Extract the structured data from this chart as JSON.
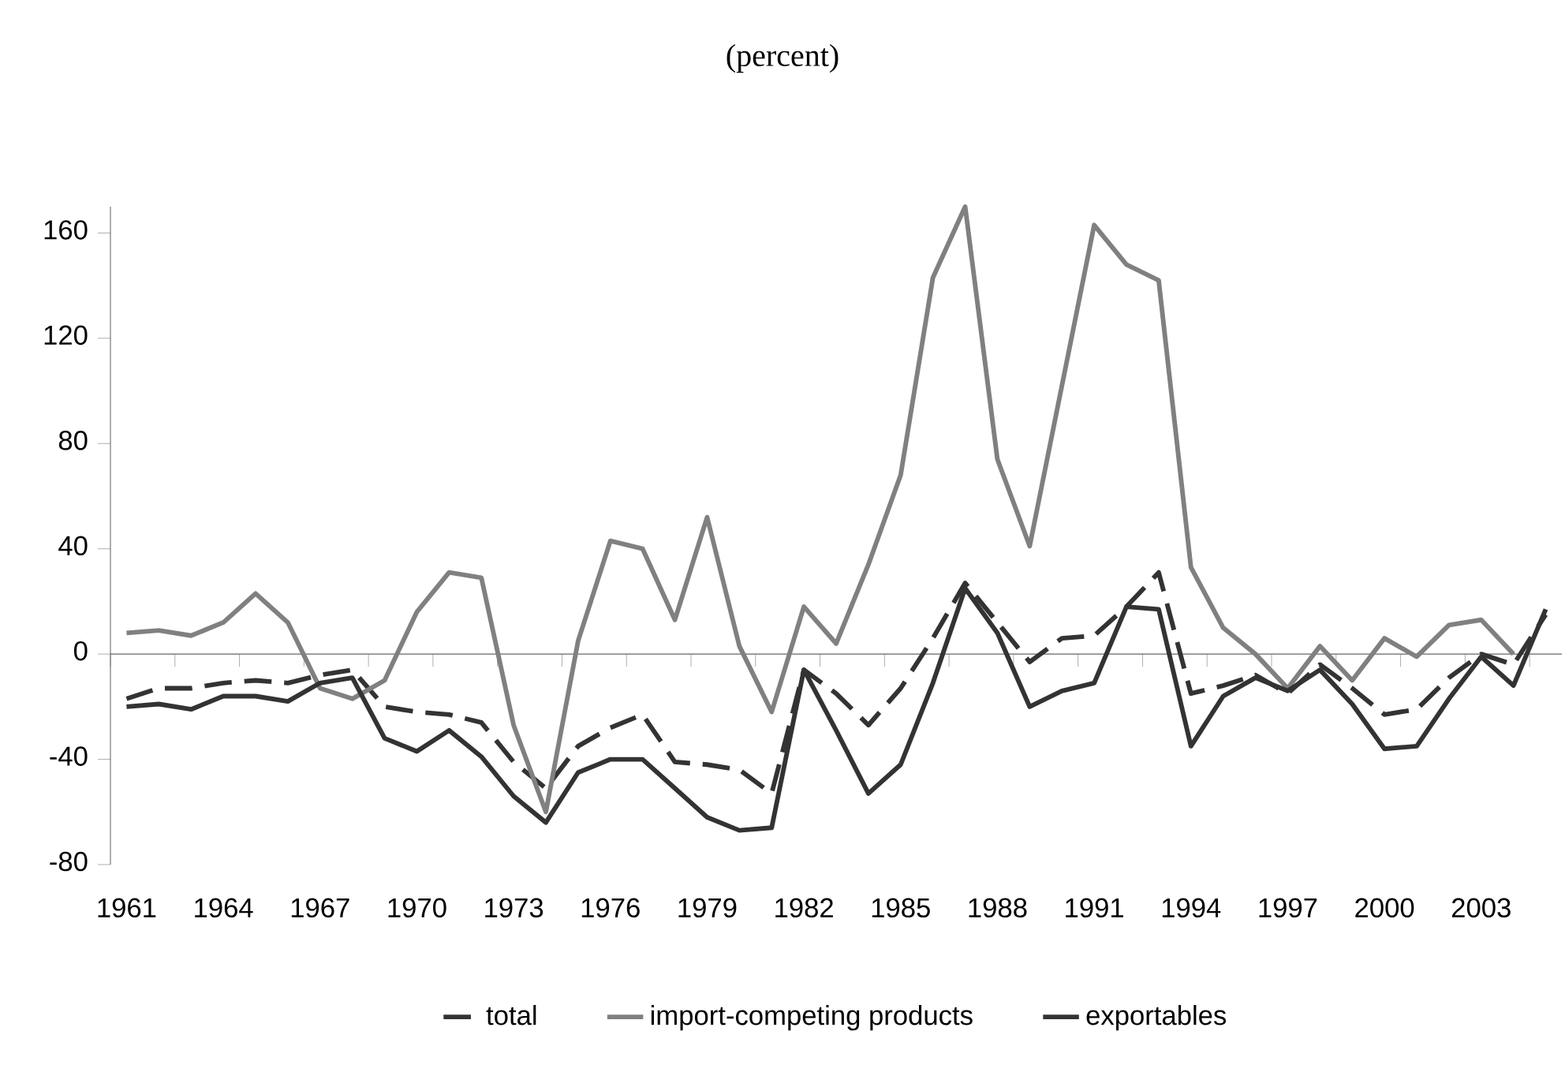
{
  "chart_data": {
    "type": "line",
    "title": "(percent)",
    "categories": [
      "1961",
      null,
      null,
      "1964",
      null,
      null,
      "1967",
      null,
      null,
      "1970",
      null,
      null,
      "1973",
      null,
      null,
      "1976",
      null,
      null,
      "1979",
      null,
      null,
      "1982",
      null,
      null,
      "1985",
      null,
      null,
      "1988",
      null,
      null,
      "1991",
      null,
      null,
      "1994",
      null,
      null,
      "1997",
      null,
      null,
      "2000",
      null,
      null,
      "2003",
      null,
      null
    ],
    "series": [
      {
        "name": "total",
        "color": "#333333",
        "line_style": "dashed",
        "values": [
          -17,
          -13,
          -13,
          -11,
          -10,
          -11,
          -8,
          -6,
          -20,
          -22,
          -23,
          -26,
          -41,
          -51,
          -35,
          -28,
          -23,
          -41,
          -42,
          -44,
          -53,
          -6,
          -15,
          -27,
          -13,
          6,
          27,
          12,
          -3,
          6,
          7,
          18,
          31,
          -15,
          -12,
          -8,
          -15,
          -4,
          -13,
          -23,
          -21,
          -9,
          0,
          -4,
          15
        ]
      },
      {
        "name": "import-competing products",
        "color": "#808080",
        "line_style": "solid",
        "values": [
          8,
          9,
          7,
          12,
          23,
          12,
          -13,
          -17,
          -10,
          16,
          31,
          29,
          -27,
          -60,
          5,
          43,
          40,
          13,
          52,
          3,
          -22,
          18,
          4,
          34,
          68,
          143,
          170,
          74,
          41,
          102,
          163,
          148,
          142,
          33,
          10,
          0,
          -13,
          3,
          -10,
          6,
          -1,
          11,
          13,
          0,
          null
        ]
      },
      {
        "name": "exportables",
        "color": "#333333",
        "line_style": "solid",
        "values": [
          -20,
          -19,
          -21,
          -16,
          -16,
          -18,
          -11,
          -9,
          -32,
          -37,
          -29,
          -39,
          -54,
          -64,
          -45,
          -40,
          -40,
          -51,
          -62,
          -67,
          -66,
          -6,
          -29,
          -53,
          -42,
          -11,
          25,
          8,
          -20,
          -14,
          -11,
          18,
          17,
          -35,
          -16,
          -9,
          -14,
          -6,
          -19,
          -36,
          -35,
          -17,
          -1,
          -12,
          17
        ]
      }
    ],
    "ylim": [
      -80,
      170
    ],
    "yticks": [
      -80,
      -40,
      0,
      40,
      80,
      120,
      160
    ],
    "legend": "bottom"
  }
}
